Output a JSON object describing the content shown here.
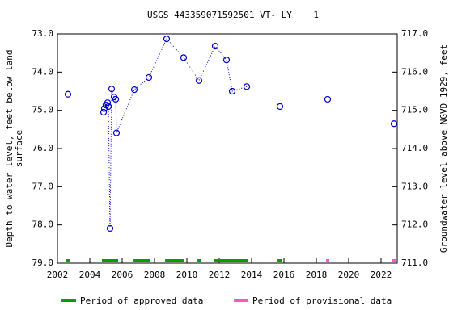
{
  "chart_data": {
    "type": "scatter",
    "title": "USGS 443359071592501 VT- LY    1",
    "y_label": [
      "Depth to water level, feet below land",
      "surface"
    ],
    "y2_label": "Groundwater level above NGVD 1929, feet",
    "xlim": [
      2002,
      2023
    ],
    "xticks": [
      2002,
      2004,
      2006,
      2008,
      2010,
      2012,
      2014,
      2016,
      2018,
      2020,
      2022
    ],
    "ylim": [
      79,
      73
    ],
    "yticks": [
      {
        "value": 73,
        "label": "73.0"
      },
      {
        "value": 74,
        "label": "74.0"
      },
      {
        "value": 75,
        "label": "75.0"
      },
      {
        "value": 76,
        "label": "76.0"
      },
      {
        "value": 77,
        "label": "77.0"
      },
      {
        "value": 78,
        "label": "78.0"
      },
      {
        "value": 79,
        "label": "79.0"
      }
    ],
    "y2lim": [
      711,
      717
    ],
    "y2ticks": [
      {
        "value": 717,
        "label": "717.0"
      },
      {
        "value": 716,
        "label": "716.0"
      },
      {
        "value": 715,
        "label": "715.0"
      },
      {
        "value": 714,
        "label": "714.0"
      },
      {
        "value": 713,
        "label": "713.0"
      },
      {
        "value": 712,
        "label": "712.0"
      },
      {
        "value": 711,
        "label": "711.0"
      }
    ],
    "series": [
      {
        "name": "Depth to water level",
        "color": "#0000cc",
        "x": [
          2002.65,
          2004.85,
          2004.9,
          2005.0,
          2005.1,
          2005.15,
          2005.25,
          2005.35,
          2005.5,
          2005.6,
          2005.65,
          2006.75,
          2007.65,
          2008.75,
          2009.8,
          2010.75,
          2011.75,
          2012.45,
          2012.8,
          2013.7,
          2015.75,
          2018.7,
          2022.8
        ],
        "values": [
          74.58,
          75.05,
          74.95,
          74.86,
          74.8,
          74.9,
          78.09,
          74.44,
          74.65,
          74.71,
          75.59,
          74.46,
          74.14,
          73.13,
          73.62,
          74.22,
          73.32,
          73.68,
          74.5,
          74.38,
          74.9,
          74.71,
          75.35
        ]
      }
    ],
    "periods": [
      {
        "name": "Period of approved data",
        "color": "#00a000",
        "ranges": [
          [
            2002.55,
            2002.75
          ],
          [
            2004.75,
            2005.75
          ],
          [
            2006.65,
            2007.75
          ],
          [
            2008.65,
            2009.85
          ],
          [
            2010.65,
            2010.85
          ],
          [
            2011.65,
            2013.8
          ],
          [
            2015.6,
            2015.85
          ]
        ]
      },
      {
        "name": "Period of provisional data",
        "color": "#ff55cc",
        "ranges": [
          [
            2018.6,
            2018.8
          ],
          [
            2022.7,
            2022.9
          ]
        ]
      }
    ]
  }
}
